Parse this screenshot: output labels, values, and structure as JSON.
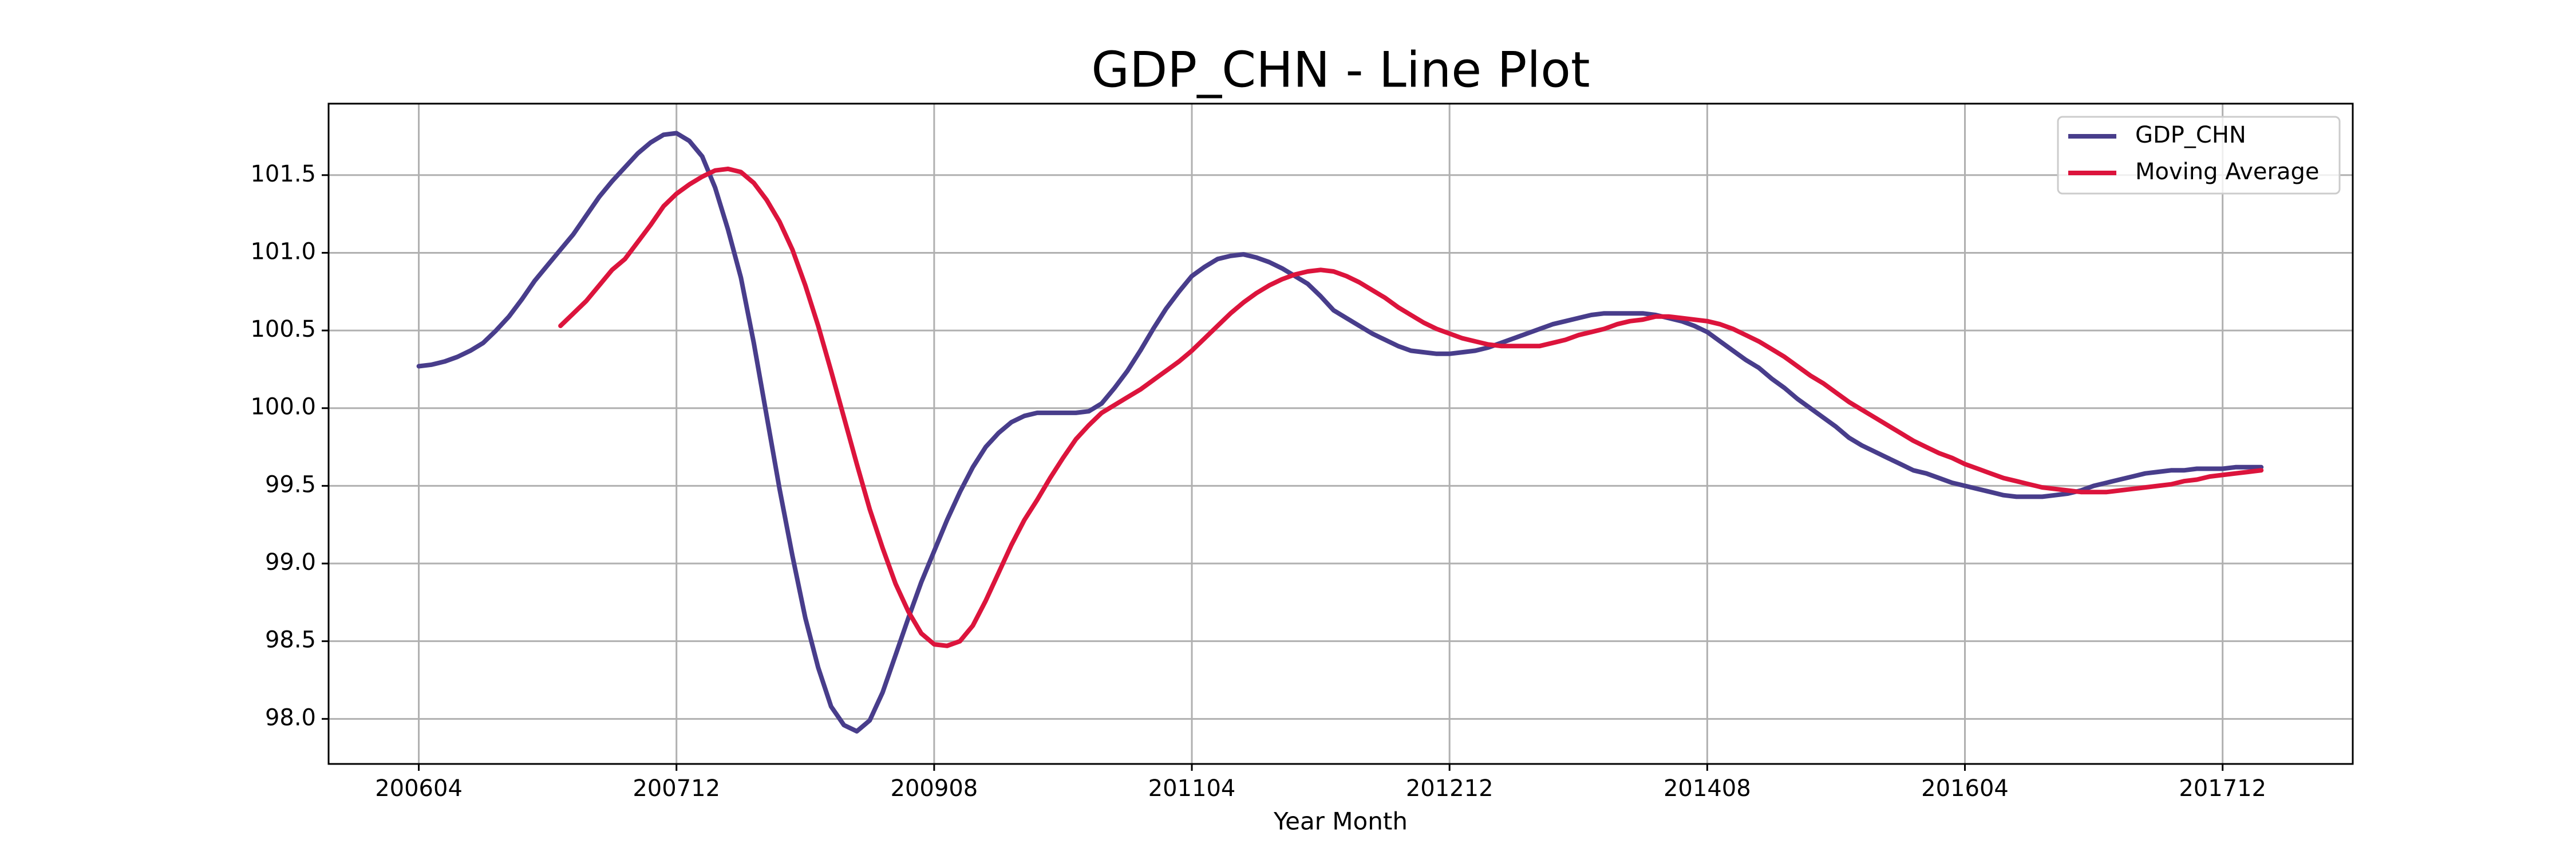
{
  "chart_data": {
    "type": "line",
    "title": "GDP_CHN - Line Plot",
    "xlabel": "Year Month",
    "x": [
      "200604",
      "200605",
      "200606",
      "200607",
      "200608",
      "200609",
      "200610",
      "200611",
      "200612",
      "200701",
      "200702",
      "200703",
      "200704",
      "200705",
      "200706",
      "200707",
      "200708",
      "200709",
      "200710",
      "200711",
      "200712",
      "200801",
      "200802",
      "200803",
      "200804",
      "200805",
      "200806",
      "200807",
      "200808",
      "200809",
      "200810",
      "200811",
      "200812",
      "200901",
      "200902",
      "200903",
      "200904",
      "200905",
      "200906",
      "200907",
      "200908",
      "200909",
      "200910",
      "200911",
      "200912",
      "201001",
      "201002",
      "201003",
      "201004",
      "201005",
      "201006",
      "201007",
      "201008",
      "201009",
      "201010",
      "201011",
      "201012",
      "201101",
      "201102",
      "201103",
      "201104",
      "201105",
      "201106",
      "201107",
      "201108",
      "201109",
      "201110",
      "201111",
      "201112",
      "201201",
      "201202",
      "201203",
      "201204",
      "201205",
      "201206",
      "201207",
      "201208",
      "201209",
      "201210",
      "201211",
      "201212",
      "201301",
      "201302",
      "201303",
      "201304",
      "201305",
      "201306",
      "201307",
      "201308",
      "201309",
      "201310",
      "201311",
      "201312",
      "201401",
      "201402",
      "201403",
      "201404",
      "201405",
      "201406",
      "201407",
      "201408",
      "201409",
      "201410",
      "201411",
      "201412",
      "201501",
      "201502",
      "201503",
      "201504",
      "201505",
      "201506",
      "201507",
      "201508",
      "201509",
      "201510",
      "201511",
      "201512",
      "201601",
      "201602",
      "201603",
      "201604",
      "201605",
      "201606",
      "201607",
      "201608",
      "201609",
      "201610",
      "201611",
      "201612",
      "201701",
      "201702",
      "201703",
      "201704",
      "201705",
      "201706",
      "201707",
      "201708",
      "201709",
      "201710",
      "201711",
      "201712",
      "201801",
      "201802",
      "201803"
    ],
    "series": [
      {
        "name": "GDP_CHN",
        "color": "#483d8b",
        "values": [
          100.27,
          100.28,
          100.3,
          100.33,
          100.37,
          100.42,
          100.5,
          100.59,
          100.7,
          100.82,
          100.92,
          101.02,
          101.12,
          101.24,
          101.36,
          101.46,
          101.55,
          101.64,
          101.71,
          101.76,
          101.77,
          101.72,
          101.62,
          101.42,
          101.15,
          100.84,
          100.42,
          99.95,
          99.48,
          99.05,
          98.65,
          98.33,
          98.08,
          97.96,
          97.92,
          97.99,
          98.17,
          98.41,
          98.65,
          98.88,
          99.08,
          99.28,
          99.46,
          99.62,
          99.75,
          99.84,
          99.91,
          99.95,
          99.97,
          99.97,
          99.97,
          99.97,
          99.98,
          100.03,
          100.13,
          100.24,
          100.37,
          100.51,
          100.64,
          100.75,
          100.85,
          100.91,
          100.96,
          100.98,
          100.99,
          100.97,
          100.94,
          100.9,
          100.85,
          100.8,
          100.72,
          100.63,
          100.58,
          100.53,
          100.48,
          100.44,
          100.4,
          100.37,
          100.36,
          100.35,
          100.35,
          100.36,
          100.37,
          100.39,
          100.42,
          100.45,
          100.48,
          100.51,
          100.54,
          100.56,
          100.58,
          100.6,
          100.61,
          100.61,
          100.61,
          100.61,
          100.6,
          100.58,
          100.56,
          100.53,
          100.49,
          100.43,
          100.37,
          100.31,
          100.26,
          100.19,
          100.13,
          100.06,
          100.0,
          99.94,
          99.88,
          99.81,
          99.76,
          99.72,
          99.68,
          99.64,
          99.6,
          99.58,
          99.55,
          99.52,
          99.5,
          99.48,
          99.46,
          99.44,
          99.43,
          99.43,
          99.43,
          99.44,
          99.45,
          99.47,
          99.5,
          99.52,
          99.54,
          99.56,
          99.58,
          99.59,
          99.6,
          99.6,
          99.61,
          99.61,
          99.61,
          99.62,
          99.62,
          99.62
        ]
      },
      {
        "name": "Moving Average",
        "color": "#dc143c",
        "values": [
          null,
          null,
          null,
          null,
          null,
          null,
          null,
          null,
          null,
          null,
          null,
          100.53,
          100.61,
          100.69,
          100.79,
          100.89,
          100.96,
          101.07,
          101.18,
          101.3,
          101.38,
          101.44,
          101.49,
          101.53,
          101.54,
          101.52,
          101.45,
          101.34,
          101.2,
          101.02,
          100.79,
          100.53,
          100.24,
          99.94,
          99.64,
          99.35,
          99.1,
          98.87,
          98.69,
          98.55,
          98.48,
          98.47,
          98.5,
          98.6,
          98.76,
          98.94,
          99.12,
          99.28,
          99.41,
          99.55,
          99.68,
          99.8,
          99.89,
          99.97,
          100.02,
          100.07,
          100.12,
          100.18,
          100.24,
          100.3,
          100.37,
          100.45,
          100.53,
          100.61,
          100.68,
          100.74,
          100.79,
          100.83,
          100.86,
          100.88,
          100.89,
          100.88,
          100.85,
          100.81,
          100.76,
          100.71,
          100.65,
          100.6,
          100.55,
          100.51,
          100.48,
          100.45,
          100.43,
          100.41,
          100.4,
          100.4,
          100.4,
          100.4,
          100.42,
          100.44,
          100.47,
          100.49,
          100.51,
          100.54,
          100.56,
          100.57,
          100.59,
          100.59,
          100.58,
          100.57,
          100.56,
          100.54,
          100.51,
          100.47,
          100.43,
          100.38,
          100.33,
          100.27,
          100.21,
          100.16,
          100.1,
          100.04,
          99.99,
          99.94,
          99.89,
          99.84,
          99.79,
          99.75,
          99.71,
          99.68,
          99.64,
          99.61,
          99.58,
          99.55,
          99.53,
          99.51,
          99.49,
          99.48,
          99.47,
          99.46,
          99.46,
          99.46,
          99.47,
          99.48,
          99.49,
          99.5,
          99.51,
          99.53,
          99.54,
          99.56,
          99.57,
          99.58,
          99.59,
          99.6
        ]
      }
    ],
    "xticks": [
      "200604",
      "200712",
      "200908",
      "201104",
      "201212",
      "201408",
      "201604",
      "201712"
    ],
    "ylim": [
      97.71,
      101.96
    ],
    "yticks": [
      {
        "value": 98,
        "label": "98.0"
      },
      98.5,
      {
        "value": 99,
        "label": "99.0"
      },
      99.5,
      {
        "value": 100,
        "label": "100.0"
      },
      100.5,
      {
        "value": 101,
        "label": "101.0"
      },
      101.5
    ],
    "grid": true,
    "legend": "upper right"
  }
}
